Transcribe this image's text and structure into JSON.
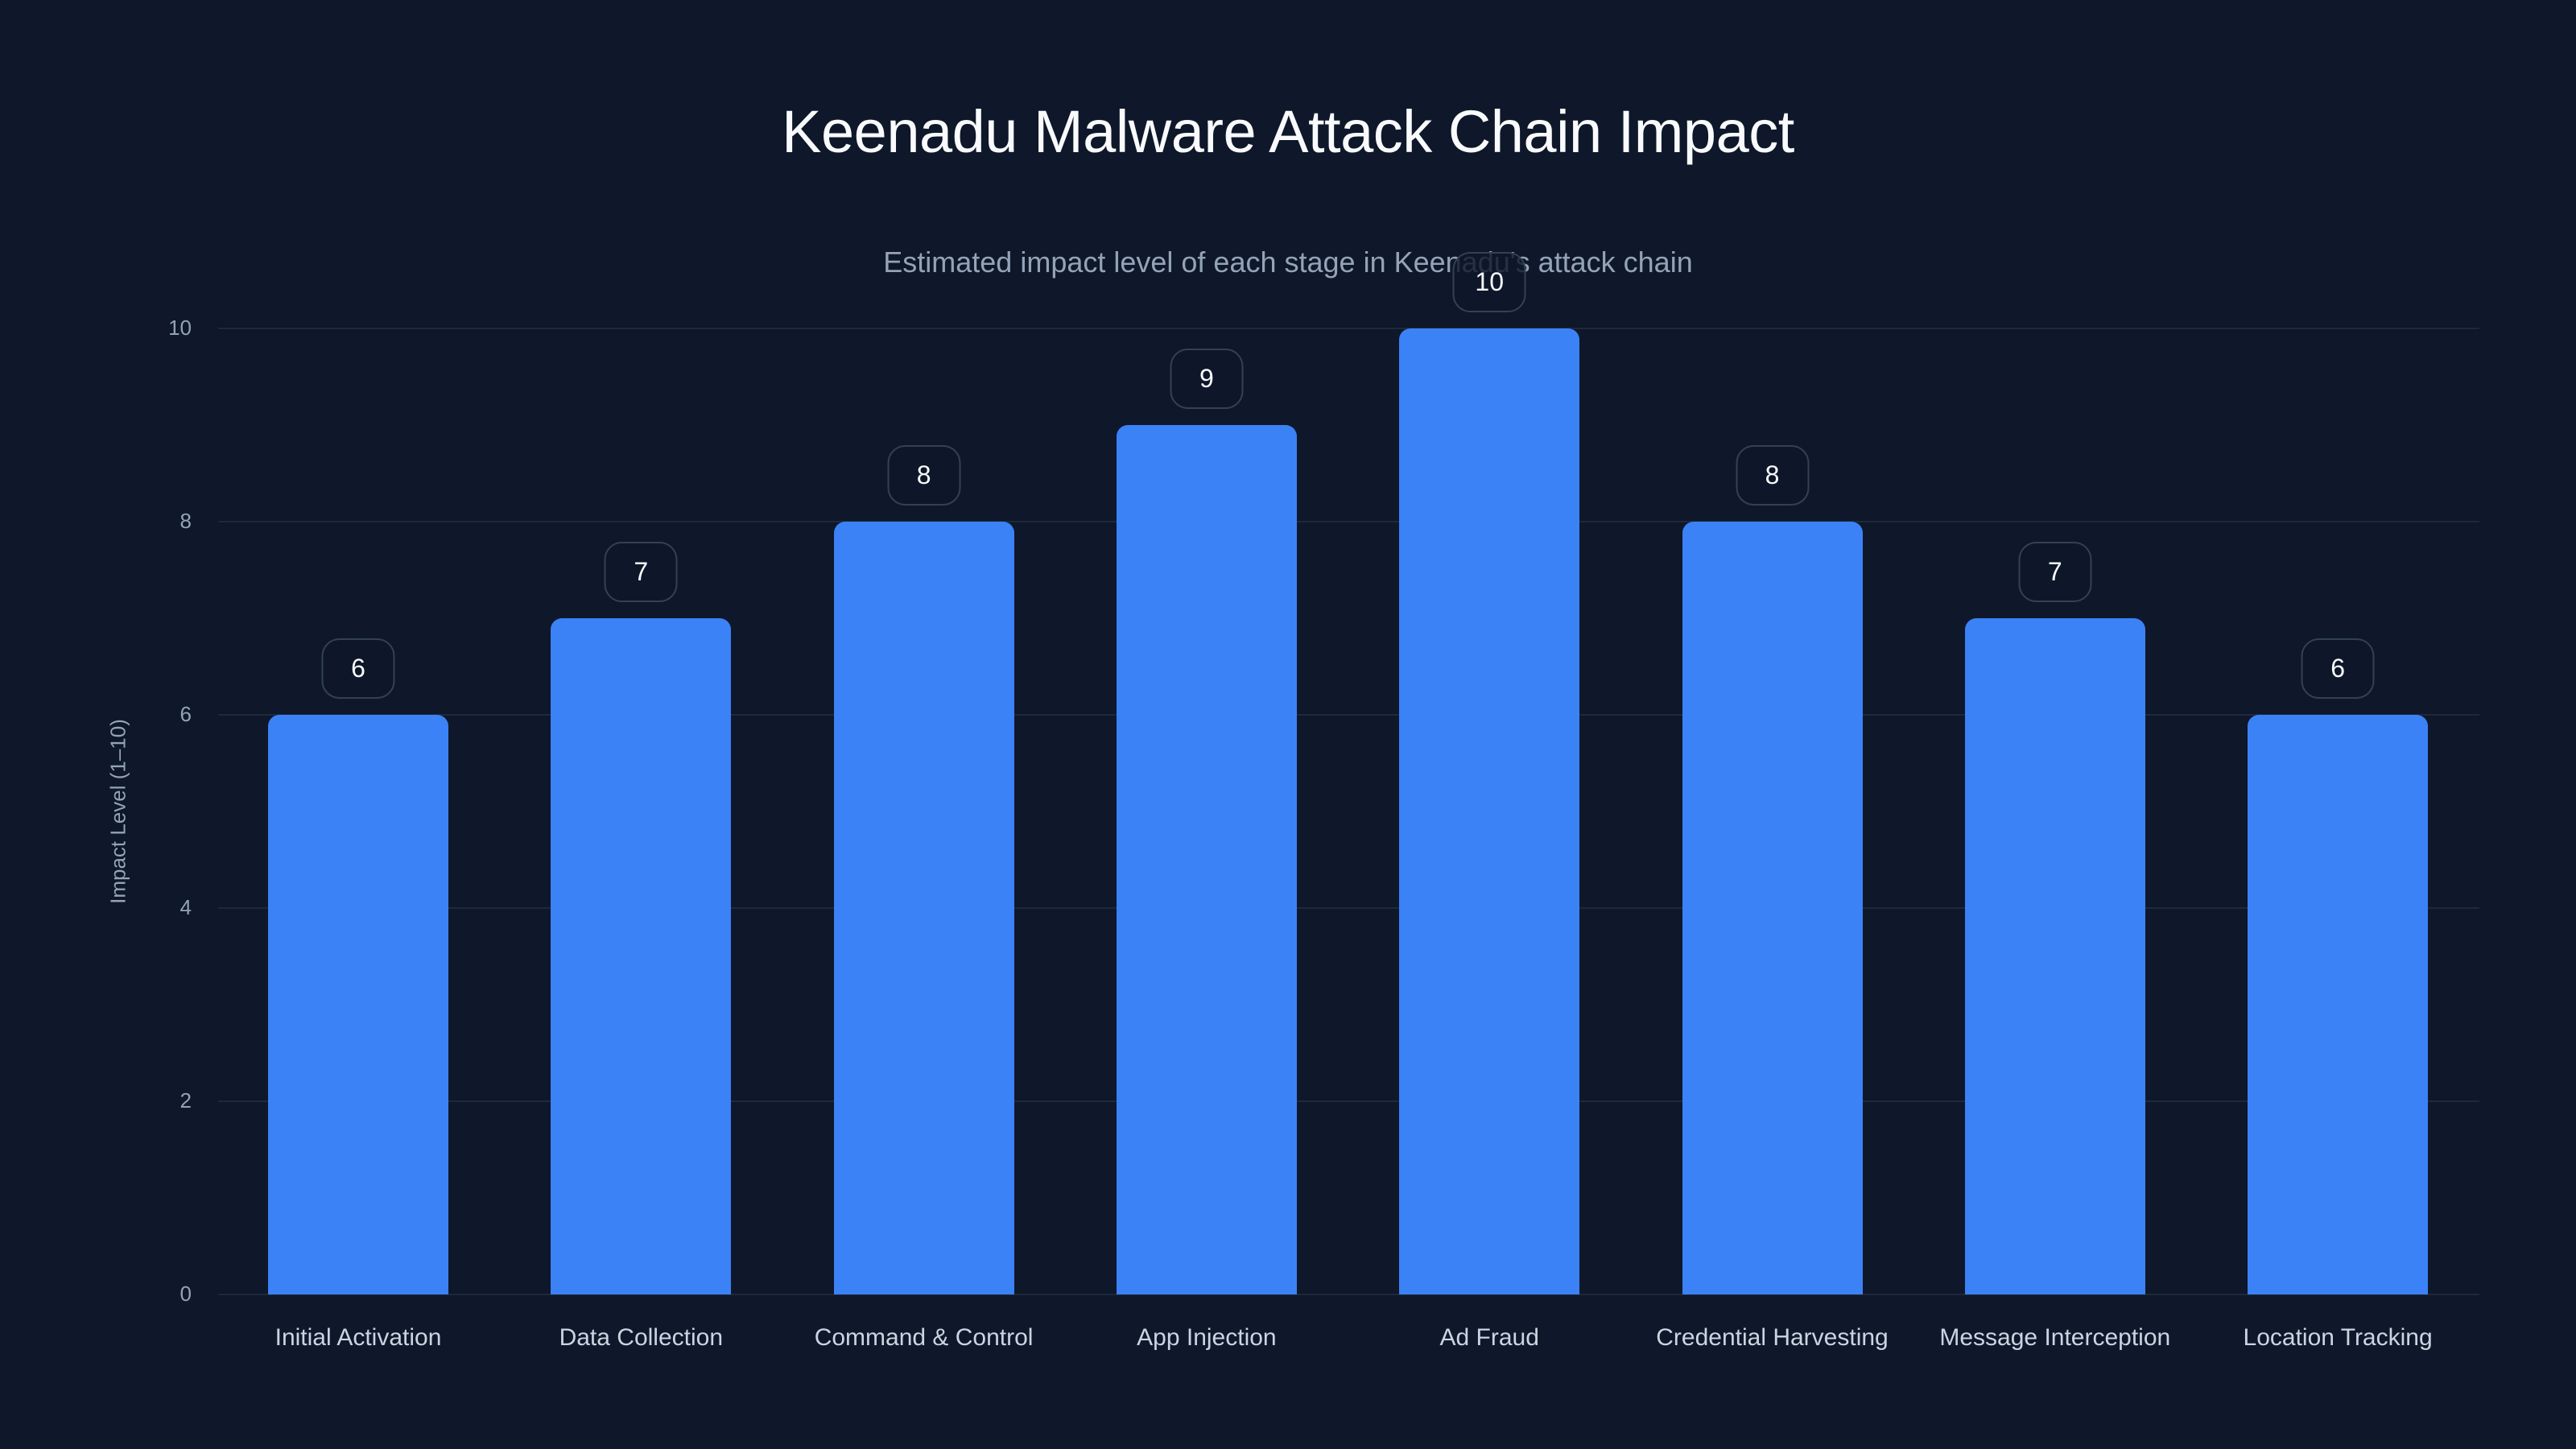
{
  "header": {
    "title": "Keenadu Malware Attack Chain Impact",
    "subtitle": "Estimated impact level of each stage in Keenadu's attack chain"
  },
  "axes": {
    "ylabel": "Impact Level (1–10)",
    "yticks": [
      "0",
      "2",
      "4",
      "6",
      "8",
      "10"
    ]
  },
  "colors": {
    "background": "#0f172a",
    "bar": "#3b82f6",
    "grid": "#1e293b",
    "badge_border": "#334155"
  },
  "bars": [
    {
      "label": "Initial Activation",
      "value": "6"
    },
    {
      "label": "Data Collection",
      "value": "7"
    },
    {
      "label": "Command & Control",
      "value": "8"
    },
    {
      "label": "App Injection",
      "value": "9"
    },
    {
      "label": "Ad Fraud",
      "value": "10"
    },
    {
      "label": "Credential Harvesting",
      "value": "8"
    },
    {
      "label": "Message Interception",
      "value": "7"
    },
    {
      "label": "Location Tracking",
      "value": "6"
    }
  ],
  "chart_data": {
    "type": "bar",
    "title": "Keenadu Malware Attack Chain Impact",
    "subtitle": "Estimated impact level of each stage in Keenadu's attack chain",
    "categories": [
      "Initial Activation",
      "Data Collection",
      "Command & Control",
      "App Injection",
      "Ad Fraud",
      "Credential Harvesting",
      "Message Interception",
      "Location Tracking"
    ],
    "values": [
      6,
      7,
      8,
      9,
      10,
      8,
      7,
      6
    ],
    "xlabel": "",
    "ylabel": "Impact Level (1–10)",
    "ylim": [
      0,
      10
    ],
    "yticks": [
      0,
      2,
      4,
      6,
      8,
      10
    ],
    "grid": true,
    "data_labels": true,
    "legend": null
  }
}
